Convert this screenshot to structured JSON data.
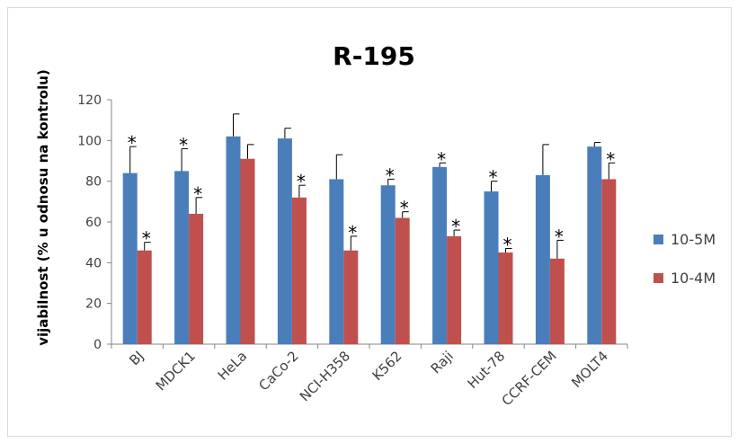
{
  "chart_data": {
    "type": "bar",
    "title": "R-195",
    "xlabel": "",
    "ylabel": "vijabilnost (% u odnosu na kontrolu)",
    "ylim": [
      0,
      120
    ],
    "yticks": [
      0,
      20,
      40,
      60,
      80,
      100,
      120
    ],
    "grid": false,
    "legend_position": "right",
    "categories": [
      "BJ",
      "MDCK1",
      "HeLa",
      "CaCo-2",
      "NCI-H358",
      "K562",
      "Raji",
      "Hut-78",
      "CCRF-CEM",
      "MOLT4"
    ],
    "series": [
      {
        "name": "10-5M",
        "color": "#4a7ebb",
        "values": [
          84,
          85,
          102,
          101,
          81,
          78,
          87,
          75,
          83,
          97
        ],
        "errors": [
          13,
          11,
          11,
          5,
          12,
          3,
          2,
          5,
          15,
          2
        ],
        "significant": [
          true,
          true,
          false,
          false,
          false,
          true,
          true,
          true,
          false,
          false
        ]
      },
      {
        "name": "10-4M",
        "color": "#c0504d",
        "values": [
          46,
          64,
          91,
          72,
          46,
          62,
          53,
          45,
          42,
          81
        ],
        "errors": [
          4,
          8,
          7,
          6,
          7,
          3,
          3,
          2,
          9,
          8
        ],
        "significant": [
          true,
          true,
          false,
          true,
          true,
          true,
          true,
          true,
          true,
          true
        ]
      }
    ],
    "significance_marker": "*"
  }
}
